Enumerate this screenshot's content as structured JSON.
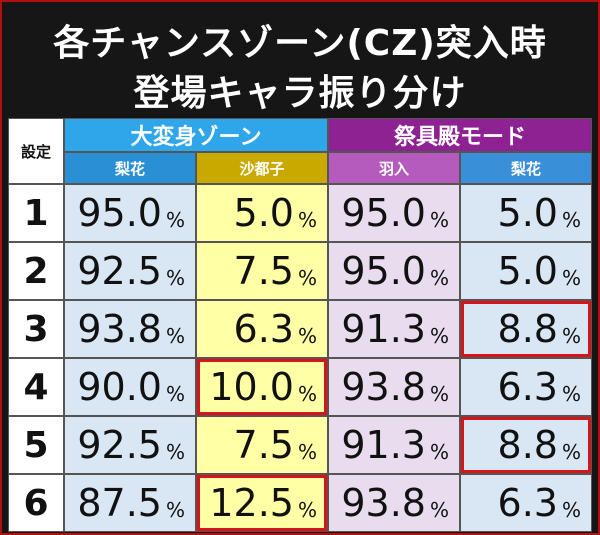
{
  "header": {
    "title_lines": [
      "各チャンスゾーン(CZ)突入時",
      "登場キャラ振り分け"
    ]
  },
  "table": {
    "corner": "設定",
    "groups": [
      {
        "label": "大変身ゾーン",
        "color": "#2fa6ea",
        "subs": [
          {
            "label": "梨花",
            "color": "#2b8fd6",
            "cell": "#d9e7f5"
          },
          {
            "label": "沙都子",
            "color": "#c9a800",
            "cell": "#ffffa6"
          }
        ]
      },
      {
        "label": "祭具殿モード",
        "color": "#8e2293",
        "subs": [
          {
            "label": "羽入",
            "color": "#b55bbd",
            "cell": "#e9dcef"
          },
          {
            "label": "梨花",
            "color": "#3a90d8",
            "cell": "#d9e7f5"
          }
        ]
      }
    ],
    "rows": [
      {
        "setting": "1",
        "cells": [
          {
            "num": "95.0",
            "unit": "%"
          },
          {
            "num": "5.0",
            "unit": "%"
          },
          {
            "num": "95.0",
            "unit": "%"
          },
          {
            "num": "5.0",
            "unit": "%"
          }
        ]
      },
      {
        "setting": "2",
        "cells": [
          {
            "num": "92.5",
            "unit": "%"
          },
          {
            "num": "7.5",
            "unit": "%"
          },
          {
            "num": "95.0",
            "unit": "%"
          },
          {
            "num": "5.0",
            "unit": "%"
          }
        ]
      },
      {
        "setting": "3",
        "cells": [
          {
            "num": "93.8",
            "unit": "%"
          },
          {
            "num": "6.3",
            "unit": "%"
          },
          {
            "num": "91.3",
            "unit": "%"
          },
          {
            "num": "8.8",
            "unit": "%",
            "highlight": true
          }
        ]
      },
      {
        "setting": "4",
        "cells": [
          {
            "num": "90.0",
            "unit": "%"
          },
          {
            "num": "10.0",
            "unit": "%",
            "highlight": true
          },
          {
            "num": "93.8",
            "unit": "%"
          },
          {
            "num": "6.3",
            "unit": "%"
          }
        ]
      },
      {
        "setting": "5",
        "cells": [
          {
            "num": "92.5",
            "unit": "%"
          },
          {
            "num": "7.5",
            "unit": "%"
          },
          {
            "num": "91.3",
            "unit": "%"
          },
          {
            "num": "8.8",
            "unit": "%",
            "highlight": true
          }
        ]
      },
      {
        "setting": "6",
        "cells": [
          {
            "num": "87.5",
            "unit": "%"
          },
          {
            "num": "12.5",
            "unit": "%",
            "highlight": true
          },
          {
            "num": "93.8",
            "unit": "%"
          },
          {
            "num": "6.3",
            "unit": "%"
          }
        ]
      }
    ]
  }
}
